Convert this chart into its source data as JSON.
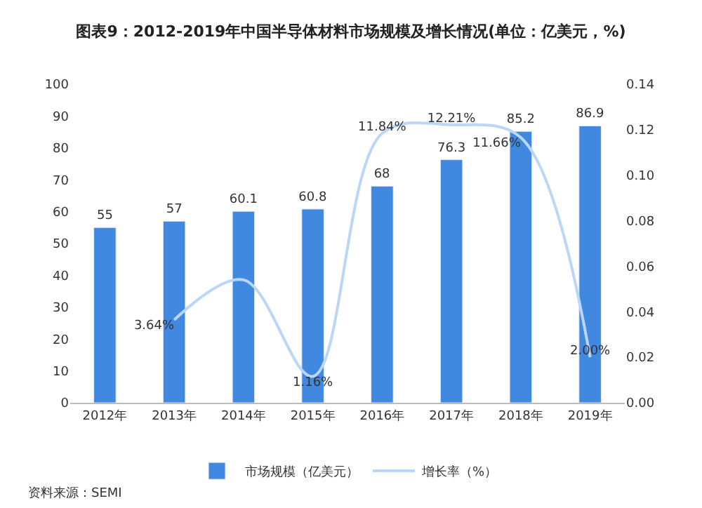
{
  "chart_data": {
    "type": "bar",
    "title": "图表9：2012-2019年中国半导体材料市场规模及增长情况(单位：亿美元，%)",
    "categories": [
      "2012年",
      "2013年",
      "2014年",
      "2015年",
      "2016年",
      "2017年",
      "2018年",
      "2019年"
    ],
    "series": [
      {
        "name": "市场规模（亿美元）",
        "color": "#4189e0",
        "values": [
          55,
          57,
          60.1,
          60.8,
          68,
          76.3,
          85.2,
          86.9
        ],
        "data_labels": true
      },
      {
        "name": "增长率（%）",
        "type": "line",
        "axis": "y2",
        "color": "#bcd6f7",
        "values": [
          null,
          0.0364,
          0.054,
          0.0116,
          0.1184,
          0.1221,
          0.1166,
          0.02
        ],
        "value_labels": [
          null,
          "3.64%",
          null,
          "1.16%",
          "11.84%",
          "12.21%",
          "11.66%",
          "2.00%"
        ]
      }
    ],
    "ylim": [
      0,
      100
    ],
    "yticks": [
      0,
      10,
      20,
      30,
      40,
      50,
      60,
      70,
      80,
      90,
      100
    ],
    "y2lim": [
      0,
      0.14
    ],
    "y2ticks": [
      {
        "value": 0,
        "label": "0.00"
      },
      {
        "value": 0.02,
        "label": "0.02"
      },
      {
        "value": 0.04,
        "label": "0.04"
      },
      {
        "value": 0.06,
        "label": "0.06"
      },
      {
        "value": 0.08,
        "label": "0.08"
      },
      {
        "value": 0.1,
        "label": "0.10"
      },
      {
        "value": 0.12,
        "label": "0.12"
      },
      {
        "value": 0.14,
        "label": "0.14"
      }
    ],
    "legend": "bottom",
    "marker": "none",
    "annotations": [
      "资料来源：SEMI"
    ]
  }
}
